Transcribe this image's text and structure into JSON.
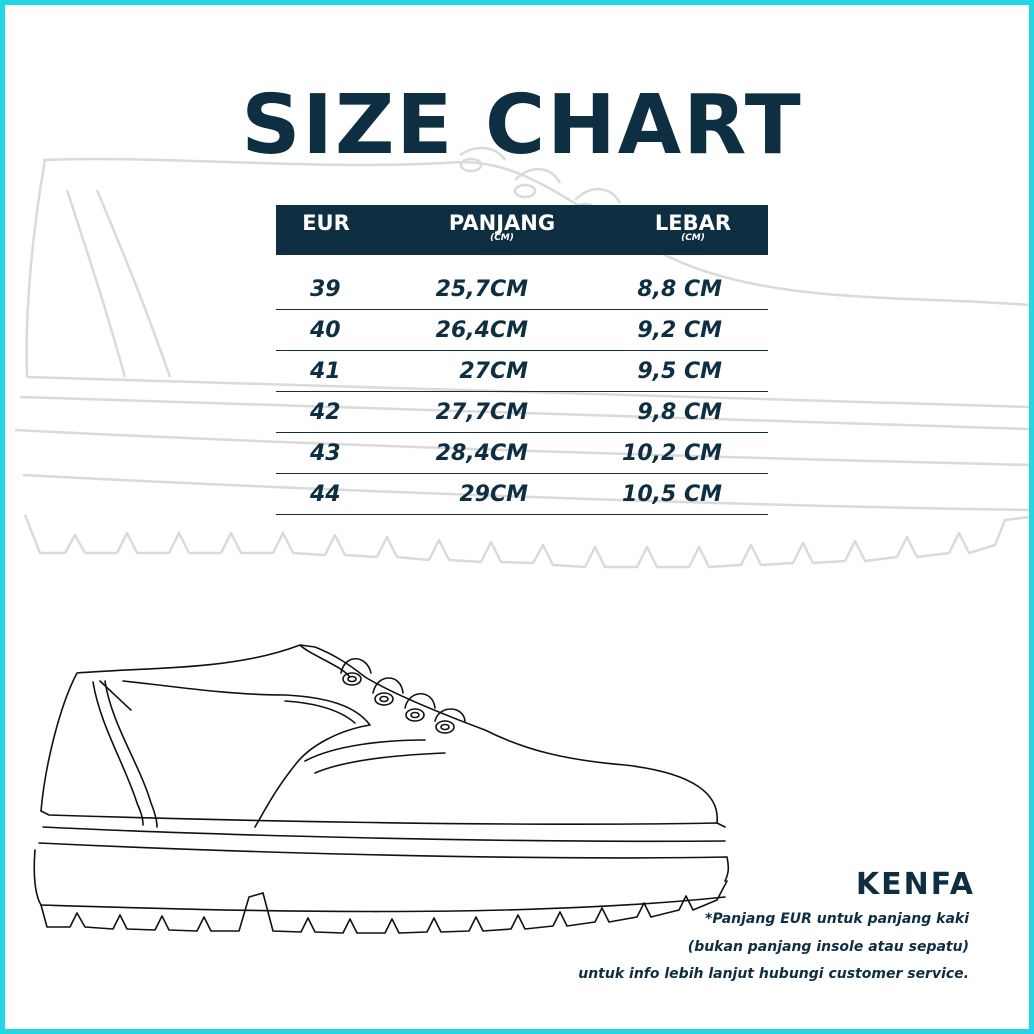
{
  "title": "SIZE CHART",
  "table": {
    "headers": [
      {
        "label": "EUR",
        "unit": ""
      },
      {
        "label": "PANJANG",
        "unit": "(CM)"
      },
      {
        "label": "LEBAR",
        "unit": "(CM)"
      }
    ],
    "rows": [
      {
        "eur": "39",
        "panjang": "25,7CM",
        "lebar": "8,8 CM"
      },
      {
        "eur": "40",
        "panjang": "26,4CM",
        "lebar": "9,2 CM"
      },
      {
        "eur": "41",
        "panjang": "27CM",
        "lebar": "9,5 CM"
      },
      {
        "eur": "42",
        "panjang": "27,7CM",
        "lebar": "9,8 CM"
      },
      {
        "eur": "43",
        "panjang": "28,4CM",
        "lebar": "10,2 CM"
      },
      {
        "eur": "44",
        "panjang": "29CM",
        "lebar": "10,5 CM"
      }
    ]
  },
  "brand": "KENFA",
  "notes": [
    "*Panjang EUR untuk panjang kaki",
    "(bukan panjang insole atau sepatu)",
    "untuk info lebih lanjut hubungi customer service."
  ],
  "colors": {
    "navy": "#0e2e42",
    "border": "#22d6e6",
    "watermark": "#d8d8d8"
  },
  "icons": {
    "background": "shoe-outline-watermark-icon",
    "illustration": "shoe-line-drawing-icon"
  }
}
